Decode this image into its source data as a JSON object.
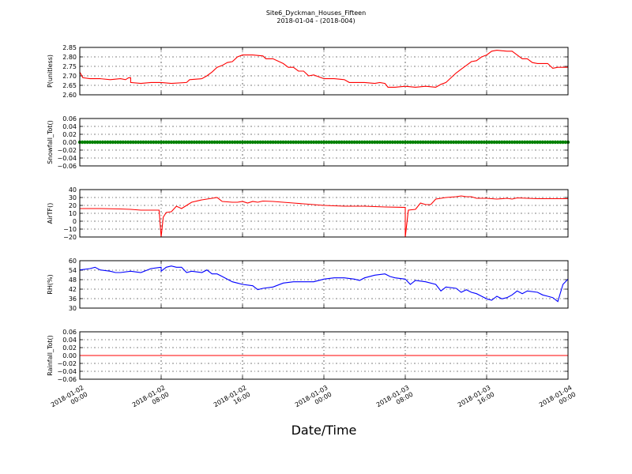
{
  "title": "Site6_Dyckman_Houses_Fifteen",
  "subtitle": "2018-01-04 - (2018-004)",
  "xlabel": "Date/Time",
  "x_ticks": [
    {
      "value": 0,
      "label1": "2018-01-02",
      "label2": "00:00"
    },
    {
      "value": 8,
      "label1": "2018-01-02",
      "label2": "08:00"
    },
    {
      "value": 16,
      "label1": "2018-01-02",
      "label2": "16:00"
    },
    {
      "value": 24,
      "label1": "2018-01-03",
      "label2": "00:00"
    },
    {
      "value": 32,
      "label1": "2018-01-03",
      "label2": "08:00"
    },
    {
      "value": 40,
      "label1": "2018-01-03",
      "label2": "16:00"
    },
    {
      "value": 48,
      "label1": "2018-01-04",
      "label2": "00:00"
    }
  ],
  "chart_data": [
    {
      "type": "line",
      "ylabel": "P(unitless)",
      "ylim": [
        2.6,
        2.85
      ],
      "yticks": [
        "2.60",
        "2.65",
        "2.70",
        "2.75",
        "2.80",
        "2.85"
      ],
      "grid": true,
      "color": "#ff0000",
      "x_unit": "hours since 2018-01-02 00:00",
      "points": [
        [
          0,
          2.72
        ],
        [
          0.3,
          2.69
        ],
        [
          1,
          2.685
        ],
        [
          2,
          2.685
        ],
        [
          3,
          2.68
        ],
        [
          4,
          2.685
        ],
        [
          4.5,
          2.68
        ],
        [
          4.8,
          2.69
        ],
        [
          5,
          2.69
        ],
        [
          5,
          2.665
        ],
        [
          6,
          2.66
        ],
        [
          7,
          2.665
        ],
        [
          8,
          2.665
        ],
        [
          9,
          2.66
        ],
        [
          10.5,
          2.665
        ],
        [
          10.8,
          2.68
        ],
        [
          12,
          2.685
        ],
        [
          12.5,
          2.7
        ],
        [
          13,
          2.72
        ],
        [
          13.5,
          2.745
        ],
        [
          14,
          2.755
        ],
        [
          14.5,
          2.77
        ],
        [
          15,
          2.775
        ],
        [
          15.5,
          2.8
        ],
        [
          16,
          2.81
        ],
        [
          17,
          2.81
        ],
        [
          18,
          2.805
        ],
        [
          18.3,
          2.79
        ],
        [
          19,
          2.79
        ],
        [
          20,
          2.765
        ],
        [
          20.5,
          2.745
        ],
        [
          21,
          2.745
        ],
        [
          21.5,
          2.725
        ],
        [
          22,
          2.725
        ],
        [
          22.5,
          2.7
        ],
        [
          23,
          2.705
        ],
        [
          24,
          2.685
        ],
        [
          25,
          2.685
        ],
        [
          26,
          2.68
        ],
        [
          26.5,
          2.665
        ],
        [
          27,
          2.665
        ],
        [
          28,
          2.665
        ],
        [
          29,
          2.66
        ],
        [
          29.5,
          2.665
        ],
        [
          30,
          2.66
        ],
        [
          30.3,
          2.64
        ],
        [
          31,
          2.64
        ],
        [
          32,
          2.645
        ],
        [
          33,
          2.64
        ],
        [
          34,
          2.645
        ],
        [
          35,
          2.64
        ],
        [
          35.5,
          2.655
        ],
        [
          36,
          2.665
        ],
        [
          36.5,
          2.69
        ],
        [
          37,
          2.715
        ],
        [
          37.5,
          2.735
        ],
        [
          38,
          2.755
        ],
        [
          38.5,
          2.775
        ],
        [
          39,
          2.78
        ],
        [
          39.5,
          2.8
        ],
        [
          40,
          2.81
        ],
        [
          40.5,
          2.83
        ],
        [
          41,
          2.835
        ],
        [
          42,
          2.83
        ],
        [
          42.5,
          2.83
        ],
        [
          43,
          2.81
        ],
        [
          43.5,
          2.79
        ],
        [
          44,
          2.79
        ],
        [
          44.5,
          2.77
        ],
        [
          45,
          2.765
        ],
        [
          46,
          2.765
        ],
        [
          46.5,
          2.74
        ],
        [
          47,
          2.745
        ],
        [
          48,
          2.745
        ]
      ]
    },
    {
      "type": "scatter",
      "ylabel": "Snowfall_Tot()",
      "ylim": [
        -0.06,
        0.06
      ],
      "yticks": [
        "−0.06",
        "−0.04",
        "−0.02",
        "0.00",
        "0.02",
        "0.04",
        "0.06"
      ],
      "grid": true,
      "color": "#008000",
      "constant_value": 0.0
    },
    {
      "type": "line",
      "ylabel": "AirTF()",
      "ylim": [
        -20,
        40
      ],
      "yticks": [
        "−20",
        "−10",
        "0",
        "10",
        "20",
        "30",
        "40"
      ],
      "grid": true,
      "color": "#ff0000",
      "points": [
        [
          0,
          16
        ],
        [
          2,
          16
        ],
        [
          4,
          15.5
        ],
        [
          5,
          15
        ],
        [
          6,
          14
        ],
        [
          7,
          14
        ],
        [
          7.8,
          14
        ],
        [
          8,
          -20
        ],
        [
          8.2,
          5
        ],
        [
          8.5,
          11
        ],
        [
          9,
          12
        ],
        [
          9.5,
          19
        ],
        [
          10,
          16
        ],
        [
          10.5,
          20
        ],
        [
          11,
          24
        ],
        [
          12,
          27
        ],
        [
          13,
          29
        ],
        [
          13.5,
          30
        ],
        [
          14,
          25
        ],
        [
          15,
          24
        ],
        [
          15.5,
          24
        ],
        [
          16,
          25
        ],
        [
          16.5,
          23
        ],
        [
          17,
          25
        ],
        [
          17.5,
          24
        ],
        [
          18,
          25.5
        ],
        [
          19,
          25
        ],
        [
          20,
          24
        ],
        [
          21,
          23
        ],
        [
          22,
          22
        ],
        [
          23,
          21
        ],
        [
          24,
          20
        ],
        [
          26,
          19
        ],
        [
          28,
          19
        ],
        [
          30,
          18
        ],
        [
          32,
          17.5
        ],
        [
          32,
          -20
        ],
        [
          32.3,
          14
        ],
        [
          33,
          15
        ],
        [
          33.5,
          23
        ],
        [
          34,
          21
        ],
        [
          34.5,
          21
        ],
        [
          35,
          28
        ],
        [
          36,
          30
        ],
        [
          37,
          31
        ],
        [
          37.5,
          32
        ],
        [
          38,
          31
        ],
        [
          38.5,
          31
        ],
        [
          39,
          29
        ],
        [
          40,
          29
        ],
        [
          41,
          28
        ],
        [
          42,
          29
        ],
        [
          42.5,
          28
        ],
        [
          43,
          29.5
        ],
        [
          44,
          29
        ],
        [
          45,
          28.5
        ],
        [
          46,
          28.5
        ],
        [
          47,
          28.5
        ],
        [
          48,
          28.5
        ]
      ]
    },
    {
      "type": "line",
      "ylabel": "RH(%)",
      "ylim": [
        24,
        60
      ],
      "yticks": [
        "30",
        "36",
        "42",
        "48",
        "54",
        "60"
      ],
      "grid": true,
      "color": "#0000ff",
      "points": [
        [
          0,
          53
        ],
        [
          1,
          54
        ],
        [
          1.5,
          55
        ],
        [
          2,
          53
        ],
        [
          3,
          52
        ],
        [
          3.5,
          51
        ],
        [
          4,
          51
        ],
        [
          5,
          52
        ],
        [
          6,
          51
        ],
        [
          7,
          54
        ],
        [
          8,
          55
        ],
        [
          8,
          52
        ],
        [
          8.5,
          55
        ],
        [
          9,
          56
        ],
        [
          9.5,
          55
        ],
        [
          10,
          55
        ],
        [
          10.5,
          51
        ],
        [
          11,
          52
        ],
        [
          12,
          51
        ],
        [
          12.5,
          53
        ],
        [
          13,
          50
        ],
        [
          13.5,
          50
        ],
        [
          14,
          48
        ],
        [
          15,
          44
        ],
        [
          15.5,
          43
        ],
        [
          16,
          42
        ],
        [
          17,
          41
        ],
        [
          17.5,
          38
        ],
        [
          18,
          39
        ],
        [
          19,
          40
        ],
        [
          20,
          43
        ],
        [
          21,
          44
        ],
        [
          22,
          44
        ],
        [
          23,
          44
        ],
        [
          24,
          46
        ],
        [
          25,
          47
        ],
        [
          26,
          47
        ],
        [
          27,
          46
        ],
        [
          27.5,
          45
        ],
        [
          28,
          47
        ],
        [
          29,
          49
        ],
        [
          30,
          50
        ],
        [
          30.5,
          48
        ],
        [
          31,
          47
        ],
        [
          32,
          46
        ],
        [
          32.5,
          42
        ],
        [
          33,
          45
        ],
        [
          34,
          44
        ],
        [
          35,
          42
        ],
        [
          35.5,
          37
        ],
        [
          36,
          40
        ],
        [
          37,
          39
        ],
        [
          37.5,
          36
        ],
        [
          38,
          38
        ],
        [
          38.5,
          36
        ],
        [
          39,
          35
        ],
        [
          39.5,
          33
        ],
        [
          40,
          31
        ],
        [
          40.5,
          30
        ],
        [
          41,
          33
        ],
        [
          41.5,
          31
        ],
        [
          42,
          32
        ],
        [
          42.5,
          34
        ],
        [
          43,
          37
        ],
        [
          43.5,
          35
        ],
        [
          44,
          37
        ],
        [
          45,
          36
        ],
        [
          45.5,
          34
        ],
        [
          46,
          33
        ],
        [
          46.5,
          32
        ],
        [
          47,
          29
        ],
        [
          47.5,
          42
        ],
        [
          48,
          46
        ]
      ]
    },
    {
      "type": "line",
      "ylabel": "Rainfall_Tot()",
      "ylim": [
        -0.06,
        0.06
      ],
      "yticks": [
        "−0.06",
        "−0.04",
        "−0.02",
        "0.00",
        "0.02",
        "0.04",
        "0.06"
      ],
      "grid": true,
      "color": "#ff0000",
      "constant_value": 0.0
    }
  ]
}
